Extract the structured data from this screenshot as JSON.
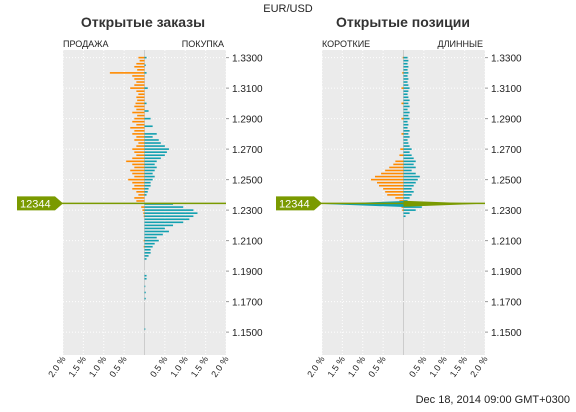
{
  "page": {
    "symbol": "EUR/USD",
    "footer": "Dec 18, 2014 09:00 GMT+0300",
    "price_marker": "12344"
  },
  "colors": {
    "short": "#ff8a00",
    "long": "#12a0b0",
    "price_line": "#7a9a00",
    "marker": "#7a9a00",
    "plot_bg": "#ebebeb"
  },
  "chart_data": [
    {
      "type": "bar",
      "title": "Открытые заказы",
      "left_label": "ПРОДАЖА",
      "right_label": "ПОКУПКА",
      "x_ticks": [
        "2.0 %",
        "1.5 %",
        "1.0 %",
        "0.5 %",
        "",
        "0.5 %",
        "1.0 %",
        "1.5 %",
        "2.0 %"
      ],
      "y_ticks": [
        "1.3300",
        "1.3100",
        "1.2900",
        "1.2700",
        "1.2500",
        "1.2300",
        "1.2100",
        "1.1900",
        "1.1700",
        "1.1500"
      ],
      "xlim": [
        -2.0,
        2.0
      ],
      "ylim": [
        1.135,
        1.335
      ],
      "current_price": 1.2344,
      "series": [
        {
          "side": "sell",
          "color": "#ff8a00",
          "bars": [
            [
              1.33,
              0.15
            ],
            [
              1.328,
              0.12
            ],
            [
              1.326,
              0.2
            ],
            [
              1.324,
              0.25
            ],
            [
              1.322,
              0.18
            ],
            [
              1.32,
              0.85
            ],
            [
              1.318,
              0.3
            ],
            [
              1.316,
              0.25
            ],
            [
              1.314,
              0.2
            ],
            [
              1.312,
              0.25
            ],
            [
              1.31,
              0.35
            ],
            [
              1.308,
              0.2
            ],
            [
              1.306,
              0.15
            ],
            [
              1.304,
              0.2
            ],
            [
              1.302,
              0.18
            ],
            [
              1.3,
              0.22
            ],
            [
              1.298,
              0.25
            ],
            [
              1.296,
              0.2
            ],
            [
              1.294,
              0.3
            ],
            [
              1.292,
              0.18
            ],
            [
              1.29,
              0.25
            ],
            [
              1.288,
              0.3
            ],
            [
              1.286,
              0.2
            ],
            [
              1.284,
              0.35
            ],
            [
              1.282,
              0.25
            ],
            [
              1.28,
              0.3
            ],
            [
              1.278,
              0.2
            ],
            [
              1.276,
              0.25
            ],
            [
              1.274,
              0.15
            ],
            [
              1.272,
              0.2
            ],
            [
              1.27,
              0.3
            ],
            [
              1.268,
              0.25
            ],
            [
              1.266,
              0.2
            ],
            [
              1.264,
              0.3
            ],
            [
              1.262,
              0.45
            ],
            [
              1.26,
              0.3
            ],
            [
              1.258,
              0.25
            ],
            [
              1.256,
              0.35
            ],
            [
              1.254,
              0.3
            ],
            [
              1.252,
              0.25
            ],
            [
              1.25,
              0.4
            ],
            [
              1.248,
              0.3
            ],
            [
              1.246,
              0.25
            ],
            [
              1.244,
              0.3
            ],
            [
              1.242,
              0.2
            ],
            [
              1.24,
              0.15
            ],
            [
              1.238,
              0.25
            ],
            [
              1.236,
              0.2
            ],
            [
              1.232,
              0.08
            ],
            [
              1.23,
              0.05
            ],
            [
              1.228,
              0.03
            ],
            [
              1.226,
              0.02
            ],
            [
              1.21,
              0.02
            ],
            [
              1.206,
              0.02
            ]
          ]
        },
        {
          "side": "buy",
          "color": "#12a0b0",
          "bars": [
            [
              1.33,
              0.05
            ],
            [
              1.325,
              0.03
            ],
            [
              1.32,
              0.05
            ],
            [
              1.31,
              0.08
            ],
            [
              1.3,
              0.05
            ],
            [
              1.295,
              0.1
            ],
            [
              1.29,
              0.15
            ],
            [
              1.285,
              0.2
            ],
            [
              1.28,
              0.3
            ],
            [
              1.278,
              0.2
            ],
            [
              1.276,
              0.35
            ],
            [
              1.274,
              0.4
            ],
            [
              1.272,
              0.5
            ],
            [
              1.27,
              0.6
            ],
            [
              1.268,
              0.55
            ],
            [
              1.266,
              0.5
            ],
            [
              1.264,
              0.4
            ],
            [
              1.262,
              0.3
            ],
            [
              1.26,
              0.25
            ],
            [
              1.258,
              0.3
            ],
            [
              1.256,
              0.25
            ],
            [
              1.254,
              0.2
            ],
            [
              1.252,
              0.25
            ],
            [
              1.25,
              0.2
            ],
            [
              1.248,
              0.15
            ],
            [
              1.246,
              0.15
            ],
            [
              1.244,
              0.1
            ],
            [
              1.242,
              0.08
            ],
            [
              1.24,
              0.05
            ],
            [
              1.234,
              0.7
            ],
            [
              1.232,
              0.95
            ],
            [
              1.23,
              1.2
            ],
            [
              1.228,
              1.3
            ],
            [
              1.226,
              1.2
            ],
            [
              1.224,
              1.1
            ],
            [
              1.222,
              0.95
            ],
            [
              1.22,
              0.7
            ],
            [
              1.218,
              0.5
            ],
            [
              1.216,
              0.6
            ],
            [
              1.214,
              0.45
            ],
            [
              1.212,
              0.3
            ],
            [
              1.21,
              0.35
            ],
            [
              1.208,
              0.25
            ],
            [
              1.206,
              0.2
            ],
            [
              1.204,
              0.15
            ],
            [
              1.202,
              0.15
            ],
            [
              1.2,
              0.1
            ],
            [
              1.198,
              0.05
            ],
            [
              1.187,
              0.05
            ],
            [
              1.185,
              0.05
            ],
            [
              1.18,
              0.02
            ],
            [
              1.176,
              0.03
            ],
            [
              1.172,
              0.03
            ],
            [
              1.152,
              0.02
            ]
          ]
        }
      ]
    },
    {
      "type": "bar",
      "title": "Открытые позиции",
      "left_label": "КОРОТКИЕ",
      "right_label": "ДЛИННЫЕ",
      "x_ticks": [
        "2.0 %",
        "1.5 %",
        "1.0 %",
        "0.5 %",
        "",
        "0.5 %",
        "1.0 %",
        "1.5 %",
        "2.0 %"
      ],
      "y_ticks": [
        "1.3300",
        "1.3100",
        "1.2900",
        "1.2700",
        "1.2500",
        "1.2300",
        "1.2100",
        "1.1900",
        "1.1700",
        "1.1500"
      ],
      "xlim": [
        -2.0,
        2.0
      ],
      "ylim": [
        1.135,
        1.335
      ],
      "current_price": 1.2344,
      "series": [
        {
          "side": "short",
          "color": "#ff8a00",
          "bars": [
            [
              1.33,
              0.02
            ],
            [
              1.32,
              0.03
            ],
            [
              1.31,
              0.05
            ],
            [
              1.3,
              0.05
            ],
            [
              1.29,
              0.05
            ],
            [
              1.28,
              0.05
            ],
            [
              1.27,
              0.08
            ],
            [
              1.266,
              0.1
            ],
            [
              1.262,
              0.2
            ],
            [
              1.26,
              0.25
            ],
            [
              1.258,
              0.35
            ],
            [
              1.256,
              0.45
            ],
            [
              1.254,
              0.55
            ],
            [
              1.252,
              0.7
            ],
            [
              1.25,
              0.8
            ],
            [
              1.248,
              0.65
            ],
            [
              1.246,
              0.6
            ],
            [
              1.244,
              0.5
            ],
            [
              1.242,
              0.45
            ],
            [
              1.24,
              0.4
            ],
            [
              1.238,
              0.2
            ],
            [
              1.236,
              0.1
            ],
            [
              1.232,
              0.05
            ],
            [
              1.23,
              0.03
            ]
          ]
        },
        {
          "side": "long",
          "color": "#12a0b0",
          "bars": [
            [
              1.33,
              0.1
            ],
            [
              1.328,
              0.12
            ],
            [
              1.326,
              0.1
            ],
            [
              1.324,
              0.12
            ],
            [
              1.322,
              0.1
            ],
            [
              1.32,
              0.12
            ],
            [
              1.318,
              0.1
            ],
            [
              1.316,
              0.12
            ],
            [
              1.314,
              0.1
            ],
            [
              1.312,
              0.12
            ],
            [
              1.31,
              0.15
            ],
            [
              1.308,
              0.12
            ],
            [
              1.306,
              0.1
            ],
            [
              1.304,
              0.12
            ],
            [
              1.302,
              0.15
            ],
            [
              1.3,
              0.12
            ],
            [
              1.298,
              0.15
            ],
            [
              1.296,
              0.1
            ],
            [
              1.294,
              0.15
            ],
            [
              1.292,
              0.12
            ],
            [
              1.29,
              0.15
            ],
            [
              1.288,
              0.1
            ],
            [
              1.286,
              0.12
            ],
            [
              1.284,
              0.1
            ],
            [
              1.282,
              0.15
            ],
            [
              1.28,
              0.12
            ],
            [
              1.278,
              0.15
            ],
            [
              1.276,
              0.1
            ],
            [
              1.274,
              0.12
            ],
            [
              1.272,
              0.15
            ],
            [
              1.27,
              0.2
            ],
            [
              1.268,
              0.15
            ],
            [
              1.266,
              0.2
            ],
            [
              1.264,
              0.25
            ],
            [
              1.262,
              0.3
            ],
            [
              1.26,
              0.25
            ],
            [
              1.258,
              0.3
            ],
            [
              1.256,
              0.2
            ],
            [
              1.254,
              0.3
            ],
            [
              1.252,
              0.4
            ],
            [
              1.25,
              0.35
            ],
            [
              1.248,
              0.3
            ],
            [
              1.246,
              0.25
            ],
            [
              1.244,
              0.2
            ],
            [
              1.242,
              0.25
            ],
            [
              1.24,
              0.2
            ],
            [
              1.238,
              0.15
            ],
            [
              1.236,
              0.1
            ],
            [
              1.232,
              0.45
            ],
            [
              1.23,
              0.3
            ],
            [
              1.228,
              0.15
            ],
            [
              1.226,
              0.05
            ]
          ]
        }
      ],
      "spikes": [
        {
          "side": "short",
          "color": "#12a0b0",
          "price": 1.234,
          "value": 1.95
        },
        {
          "side": "long",
          "color": "#7a9a00",
          "price": 1.2342,
          "value": 1.95
        }
      ]
    }
  ]
}
